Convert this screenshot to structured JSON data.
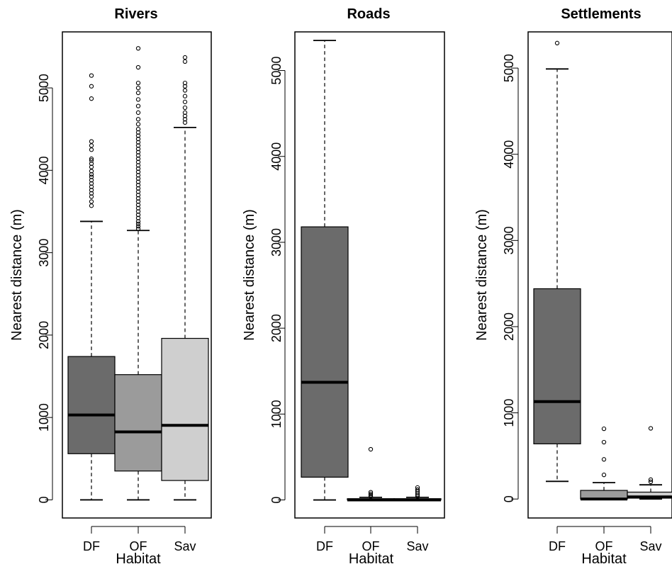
{
  "chart_data": [
    {
      "type": "box",
      "title": "Rivers",
      "xlabel": "Habitat",
      "ylabel": "Nearest distance (m)",
      "ylim": [
        -220,
        5680
      ],
      "yticks": [
        0,
        1000,
        2000,
        3000,
        4000,
        5000
      ],
      "categories": [
        "DF",
        "OF",
        "Sav"
      ],
      "boxes": [
        {
          "category": "DF",
          "fill": "#6b6b6b",
          "min": 0,
          "q1": 560,
          "median": 1030,
          "q3": 1740,
          "max": 3380,
          "outliers": [
            3570,
            3620,
            3680,
            3720,
            3760,
            3800,
            3840,
            3880,
            3920,
            3950,
            3990,
            4040,
            4080,
            4120,
            4140,
            4250,
            4300,
            4350,
            4870,
            5020,
            5150
          ]
        },
        {
          "category": "OF",
          "fill": "#9b9b9b",
          "min": 0,
          "q1": 350,
          "median": 825,
          "q3": 1520,
          "max": 3270,
          "outliers": [
            3290,
            3320,
            3350,
            3380,
            3420,
            3460,
            3500,
            3540,
            3580,
            3620,
            3660,
            3700,
            3740,
            3780,
            3820,
            3860,
            3900,
            3940,
            3980,
            4020,
            4060,
            4100,
            4140,
            4180,
            4220,
            4260,
            4300,
            4340,
            4380,
            4420,
            4460,
            4500,
            4560,
            4620,
            4700,
            4780,
            4860,
            4940,
            5000,
            5060,
            5250,
            5480
          ]
        },
        {
          "category": "Sav",
          "fill": "#cfcfcf",
          "min": 0,
          "q1": 235,
          "median": 905,
          "q3": 1960,
          "max": 4520,
          "outliers": [
            4580,
            4620,
            4660,
            4700,
            4760,
            4830,
            4900,
            4970,
            5020,
            5060,
            5320,
            5370
          ]
        }
      ]
    },
    {
      "type": "box",
      "title": "Roads",
      "xlabel": "Habitat",
      "ylabel": "Nearest distance (m)",
      "ylim": [
        -210,
        5450
      ],
      "yticks": [
        0,
        1000,
        2000,
        3000,
        4000,
        5000
      ],
      "categories": [
        "DF",
        "OF",
        "Sav"
      ],
      "boxes": [
        {
          "category": "DF",
          "fill": "#6b6b6b",
          "min": 0,
          "q1": 265,
          "median": 1370,
          "q3": 3180,
          "max": 5350,
          "outliers": []
        },
        {
          "category": "OF",
          "fill": "#9b9b9b",
          "min": 0,
          "q1": 0,
          "median": 0,
          "q3": 15,
          "max": 30,
          "outliers": [
            40,
            55,
            70,
            90,
            590
          ]
        },
        {
          "category": "Sav",
          "fill": "#cfcfcf",
          "min": 0,
          "q1": 0,
          "median": 0,
          "q3": 15,
          "max": 30,
          "outliers": [
            40,
            60,
            80,
            100,
            120,
            145
          ]
        }
      ]
    },
    {
      "type": "box",
      "title": "Settlements",
      "xlabel": "Habitat",
      "ylabel": "Nearest distance (m)",
      "ylim": [
        -220,
        5420
      ],
      "yticks": [
        0,
        1000,
        2000,
        3000,
        4000,
        5000
      ],
      "categories": [
        "DF",
        "OF",
        "Sav"
      ],
      "boxes": [
        {
          "category": "DF",
          "fill": "#6b6b6b",
          "min": 205,
          "q1": 640,
          "median": 1130,
          "q3": 2440,
          "max": 4990,
          "outliers": [
            5290
          ]
        },
        {
          "category": "OF",
          "fill": "#9b9b9b",
          "min": 0,
          "q1": 0,
          "median": 0,
          "q3": 100,
          "max": 190,
          "outliers": [
            280,
            460,
            660,
            815
          ]
        },
        {
          "category": "Sav",
          "fill": "#cfcfcf",
          "min": 0,
          "q1": 10,
          "median": 25,
          "q3": 80,
          "max": 165,
          "outliers": [
            200,
            225,
            820
          ]
        }
      ]
    }
  ]
}
